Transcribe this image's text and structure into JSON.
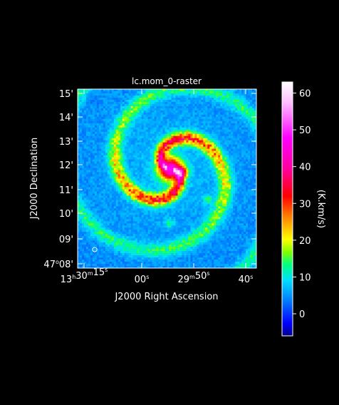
{
  "chart_data": {
    "type": "heatmap",
    "title": "lc.mom_0-raster",
    "xlabel": "J2000 Right Ascension",
    "ylabel": "J2000 Declination",
    "colorbar_label": "(K.km/s)",
    "x_ticks": [
      {
        "h": "13",
        "m": "30",
        "s": "15"
      },
      {
        "s": "00"
      },
      {
        "m": "29",
        "s": "50"
      },
      {
        "s": "40"
      }
    ],
    "y_ticks": [
      {
        "d": "47",
        "m": "08"
      },
      {
        "m": "09"
      },
      {
        "m": "10"
      },
      {
        "m": "11"
      },
      {
        "m": "12"
      },
      {
        "m": "13"
      },
      {
        "m": "14"
      },
      {
        "m": "15"
      }
    ],
    "colorbar_ticks": [
      "0",
      "10",
      "20",
      "30",
      "40",
      "50",
      "60"
    ],
    "colorbar_range": [
      -6,
      63
    ],
    "peak_value": 60,
    "colormap": [
      "#00008b",
      "#0000ff",
      "#0080ff",
      "#00e0ff",
      "#00ff80",
      "#80ff00",
      "#ffff00",
      "#ff8000",
      "#ff0000",
      "#ff00a0",
      "#ff00ff",
      "#ffc0ff",
      "#ffffff"
    ],
    "structure": "two-armed spiral galaxy, bright central bulge",
    "beam_marker": true,
    "grid": false
  }
}
